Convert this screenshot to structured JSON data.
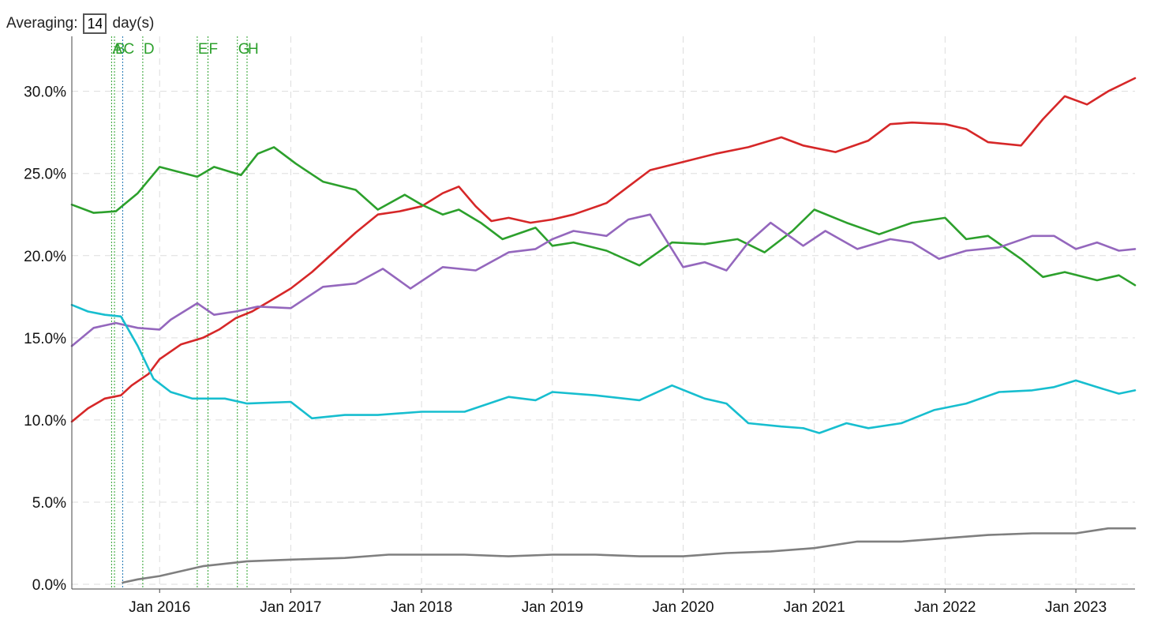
{
  "controls": {
    "averaging_label": "Averaging:",
    "averaging_value": "14",
    "unit_label": "day(s)"
  },
  "chart_data": {
    "type": "line",
    "title": "",
    "xlabel": "",
    "ylabel": "",
    "xlim": [
      "2015-05-01",
      "2023-06-15"
    ],
    "ylim": [
      0,
      0.32
    ],
    "x_ticks": [
      {
        "date": "2016-01-01",
        "label": "Jan 2016"
      },
      {
        "date": "2017-01-01",
        "label": "Jan 2017"
      },
      {
        "date": "2018-01-01",
        "label": "Jan 2018"
      },
      {
        "date": "2019-01-01",
        "label": "Jan 2019"
      },
      {
        "date": "2020-01-01",
        "label": "Jan 2020"
      },
      {
        "date": "2021-01-01",
        "label": "Jan 2021"
      },
      {
        "date": "2022-01-01",
        "label": "Jan 2022"
      },
      {
        "date": "2023-01-01",
        "label": "Jan 2023"
      }
    ],
    "y_ticks": [
      {
        "value": 0.0,
        "label": "0.0%"
      },
      {
        "value": 0.05,
        "label": "5.0%"
      },
      {
        "value": 0.1,
        "label": "10.0%"
      },
      {
        "value": 0.15,
        "label": "15.0%"
      },
      {
        "value": 0.2,
        "label": "20.0%"
      },
      {
        "value": 0.25,
        "label": "25.0%"
      },
      {
        "value": 0.3,
        "label": "30.0%"
      }
    ],
    "grid": true,
    "annotations": [
      {
        "label": "A",
        "date": "2015-08-20"
      },
      {
        "label": "B",
        "date": "2015-08-28"
      },
      {
        "label": "C",
        "date": "2015-09-20"
      },
      {
        "label": "D",
        "date": "2015-11-15"
      },
      {
        "label": "E",
        "date": "2016-04-15"
      },
      {
        "label": "F",
        "date": "2016-05-15"
      },
      {
        "label": "G",
        "date": "2016-08-05"
      },
      {
        "label": "H",
        "date": "2016-09-01"
      }
    ],
    "series": [
      {
        "color": "#d62728",
        "points": [
          [
            "2015-05-01",
            0.099
          ],
          [
            "2015-06-15",
            0.107
          ],
          [
            "2015-08-01",
            0.113
          ],
          [
            "2015-09-15",
            0.115
          ],
          [
            "2015-10-15",
            0.121
          ],
          [
            "2015-12-01",
            0.128
          ],
          [
            "2016-01-01",
            0.137
          ],
          [
            "2016-03-01",
            0.146
          ],
          [
            "2016-05-01",
            0.15
          ],
          [
            "2016-06-15",
            0.155
          ],
          [
            "2016-08-01",
            0.162
          ],
          [
            "2016-09-15",
            0.166
          ],
          [
            "2016-11-01",
            0.172
          ],
          [
            "2017-01-01",
            0.18
          ],
          [
            "2017-03-01",
            0.19
          ],
          [
            "2017-05-01",
            0.202
          ],
          [
            "2017-07-01",
            0.214
          ],
          [
            "2017-09-01",
            0.225
          ],
          [
            "2017-11-01",
            0.227
          ],
          [
            "2018-01-01",
            0.23
          ],
          [
            "2018-03-01",
            0.238
          ],
          [
            "2018-04-15",
            0.242
          ],
          [
            "2018-06-01",
            0.23
          ],
          [
            "2018-07-15",
            0.221
          ],
          [
            "2018-09-01",
            0.223
          ],
          [
            "2018-11-01",
            0.22
          ],
          [
            "2019-01-01",
            0.222
          ],
          [
            "2019-03-01",
            0.225
          ],
          [
            "2019-06-01",
            0.232
          ],
          [
            "2019-08-01",
            0.242
          ],
          [
            "2019-10-01",
            0.252
          ],
          [
            "2020-01-01",
            0.257
          ],
          [
            "2020-04-01",
            0.262
          ],
          [
            "2020-07-01",
            0.266
          ],
          [
            "2020-10-01",
            0.272
          ],
          [
            "2020-12-01",
            0.267
          ],
          [
            "2021-03-01",
            0.263
          ],
          [
            "2021-06-01",
            0.27
          ],
          [
            "2021-08-01",
            0.28
          ],
          [
            "2021-10-01",
            0.281
          ],
          [
            "2022-01-01",
            0.28
          ],
          [
            "2022-03-01",
            0.277
          ],
          [
            "2022-05-01",
            0.269
          ],
          [
            "2022-08-01",
            0.267
          ],
          [
            "2022-10-01",
            0.283
          ],
          [
            "2022-12-01",
            0.297
          ],
          [
            "2023-02-01",
            0.292
          ],
          [
            "2023-04-01",
            0.3
          ],
          [
            "2023-06-15",
            0.308
          ]
        ]
      },
      {
        "color": "#2ca02c",
        "points": [
          [
            "2015-05-01",
            0.231
          ],
          [
            "2015-07-01",
            0.226
          ],
          [
            "2015-09-01",
            0.227
          ],
          [
            "2015-11-01",
            0.238
          ],
          [
            "2016-01-01",
            0.254
          ],
          [
            "2016-04-15",
            0.248
          ],
          [
            "2016-06-01",
            0.254
          ],
          [
            "2016-08-15",
            0.249
          ],
          [
            "2016-10-01",
            0.262
          ],
          [
            "2016-11-15",
            0.266
          ],
          [
            "2017-01-15",
            0.256
          ],
          [
            "2017-04-01",
            0.245
          ],
          [
            "2017-07-01",
            0.24
          ],
          [
            "2017-09-01",
            0.228
          ],
          [
            "2017-11-15",
            0.237
          ],
          [
            "2018-01-01",
            0.231
          ],
          [
            "2018-03-01",
            0.225
          ],
          [
            "2018-04-15",
            0.228
          ],
          [
            "2018-06-15",
            0.22
          ],
          [
            "2018-08-15",
            0.21
          ],
          [
            "2018-11-15",
            0.217
          ],
          [
            "2019-01-01",
            0.206
          ],
          [
            "2019-03-01",
            0.208
          ],
          [
            "2019-06-01",
            0.203
          ],
          [
            "2019-09-01",
            0.194
          ],
          [
            "2019-12-01",
            0.208
          ],
          [
            "2020-03-01",
            0.207
          ],
          [
            "2020-06-01",
            0.21
          ],
          [
            "2020-08-15",
            0.202
          ],
          [
            "2020-11-01",
            0.215
          ],
          [
            "2021-01-01",
            0.228
          ],
          [
            "2021-04-01",
            0.22
          ],
          [
            "2021-07-01",
            0.213
          ],
          [
            "2021-10-01",
            0.22
          ],
          [
            "2022-01-01",
            0.223
          ],
          [
            "2022-03-01",
            0.21
          ],
          [
            "2022-05-01",
            0.212
          ],
          [
            "2022-08-01",
            0.198
          ],
          [
            "2022-10-01",
            0.187
          ],
          [
            "2022-12-01",
            0.19
          ],
          [
            "2023-03-01",
            0.185
          ],
          [
            "2023-05-01",
            0.188
          ],
          [
            "2023-06-15",
            0.182
          ]
        ]
      },
      {
        "color": "#9467bd",
        "points": [
          [
            "2015-05-01",
            0.145
          ],
          [
            "2015-07-01",
            0.156
          ],
          [
            "2015-09-01",
            0.159
          ],
          [
            "2015-11-01",
            0.156
          ],
          [
            "2016-01-01",
            0.155
          ],
          [
            "2016-02-01",
            0.161
          ],
          [
            "2016-04-15",
            0.171
          ],
          [
            "2016-06-01",
            0.164
          ],
          [
            "2016-08-01",
            0.166
          ],
          [
            "2016-10-01",
            0.169
          ],
          [
            "2017-01-01",
            0.168
          ],
          [
            "2017-04-01",
            0.181
          ],
          [
            "2017-07-01",
            0.183
          ],
          [
            "2017-09-15",
            0.192
          ],
          [
            "2017-12-01",
            0.18
          ],
          [
            "2018-03-01",
            0.193
          ],
          [
            "2018-06-01",
            0.191
          ],
          [
            "2018-09-01",
            0.202
          ],
          [
            "2018-11-15",
            0.204
          ],
          [
            "2019-01-01",
            0.21
          ],
          [
            "2019-03-01",
            0.215
          ],
          [
            "2019-06-01",
            0.212
          ],
          [
            "2019-08-01",
            0.222
          ],
          [
            "2019-10-01",
            0.225
          ],
          [
            "2020-01-01",
            0.193
          ],
          [
            "2020-03-01",
            0.196
          ],
          [
            "2020-05-01",
            0.191
          ],
          [
            "2020-07-01",
            0.208
          ],
          [
            "2020-09-01",
            0.22
          ],
          [
            "2020-12-01",
            0.206
          ],
          [
            "2021-02-01",
            0.215
          ],
          [
            "2021-05-01",
            0.204
          ],
          [
            "2021-08-01",
            0.21
          ],
          [
            "2021-10-01",
            0.208
          ],
          [
            "2021-12-15",
            0.198
          ],
          [
            "2022-03-01",
            0.203
          ],
          [
            "2022-06-01",
            0.205
          ],
          [
            "2022-09-01",
            0.212
          ],
          [
            "2022-11-01",
            0.212
          ],
          [
            "2023-01-01",
            0.204
          ],
          [
            "2023-03-01",
            0.208
          ],
          [
            "2023-05-01",
            0.203
          ],
          [
            "2023-06-15",
            0.204
          ]
        ]
      },
      {
        "color": "#17becf",
        "points": [
          [
            "2015-05-01",
            0.17
          ],
          [
            "2015-06-15",
            0.166
          ],
          [
            "2015-08-01",
            0.164
          ],
          [
            "2015-09-15",
            0.163
          ],
          [
            "2015-11-01",
            0.145
          ],
          [
            "2015-12-15",
            0.125
          ],
          [
            "2016-02-01",
            0.117
          ],
          [
            "2016-04-01",
            0.113
          ],
          [
            "2016-07-01",
            0.113
          ],
          [
            "2016-09-01",
            0.11
          ],
          [
            "2017-01-01",
            0.111
          ],
          [
            "2017-03-01",
            0.101
          ],
          [
            "2017-06-01",
            0.103
          ],
          [
            "2017-09-01",
            0.103
          ],
          [
            "2018-01-01",
            0.105
          ],
          [
            "2018-05-01",
            0.105
          ],
          [
            "2018-09-01",
            0.114
          ],
          [
            "2018-11-15",
            0.112
          ],
          [
            "2019-01-01",
            0.117
          ],
          [
            "2019-05-01",
            0.115
          ],
          [
            "2019-09-01",
            0.112
          ],
          [
            "2019-12-01",
            0.121
          ],
          [
            "2020-03-01",
            0.113
          ],
          [
            "2020-05-01",
            0.11
          ],
          [
            "2020-07-01",
            0.098
          ],
          [
            "2020-10-01",
            0.096
          ],
          [
            "2020-12-01",
            0.095
          ],
          [
            "2021-01-15",
            0.092
          ],
          [
            "2021-04-01",
            0.098
          ],
          [
            "2021-06-01",
            0.095
          ],
          [
            "2021-09-01",
            0.098
          ],
          [
            "2021-12-01",
            0.106
          ],
          [
            "2022-03-01",
            0.11
          ],
          [
            "2022-06-01",
            0.117
          ],
          [
            "2022-09-01",
            0.118
          ],
          [
            "2022-11-01",
            0.12
          ],
          [
            "2023-01-01",
            0.124
          ],
          [
            "2023-03-01",
            0.12
          ],
          [
            "2023-05-01",
            0.116
          ],
          [
            "2023-06-15",
            0.118
          ]
        ]
      },
      {
        "color": "#7f7f7f",
        "points": [
          [
            "2015-09-20",
            0.001
          ],
          [
            "2015-11-01",
            0.003
          ],
          [
            "2016-01-01",
            0.005
          ],
          [
            "2016-05-01",
            0.011
          ],
          [
            "2016-09-01",
            0.014
          ],
          [
            "2017-01-01",
            0.015
          ],
          [
            "2017-06-01",
            0.016
          ],
          [
            "2017-10-01",
            0.018
          ],
          [
            "2018-01-01",
            0.018
          ],
          [
            "2018-05-01",
            0.018
          ],
          [
            "2018-09-01",
            0.017
          ],
          [
            "2019-01-01",
            0.018
          ],
          [
            "2019-05-01",
            0.018
          ],
          [
            "2019-09-01",
            0.017
          ],
          [
            "2020-01-01",
            0.017
          ],
          [
            "2020-05-01",
            0.019
          ],
          [
            "2020-09-01",
            0.02
          ],
          [
            "2021-01-01",
            0.022
          ],
          [
            "2021-05-01",
            0.026
          ],
          [
            "2021-09-01",
            0.026
          ],
          [
            "2022-01-01",
            0.028
          ],
          [
            "2022-05-01",
            0.03
          ],
          [
            "2022-09-01",
            0.031
          ],
          [
            "2023-01-01",
            0.031
          ],
          [
            "2023-04-01",
            0.034
          ],
          [
            "2023-06-15",
            0.034
          ]
        ]
      }
    ]
  }
}
